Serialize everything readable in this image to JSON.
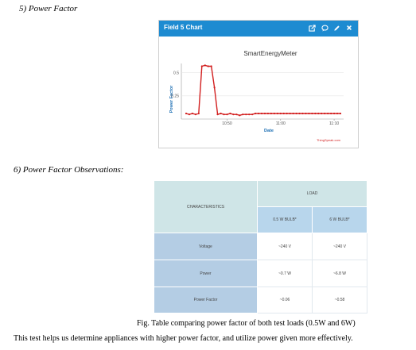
{
  "headings": {
    "power_factor": "5)  Power Factor",
    "observations": "6)  Power Factor Observations:"
  },
  "widget": {
    "title": "Field 5 Chart",
    "icons": [
      "external-link-icon",
      "comment-icon",
      "pencil-icon",
      "close-icon"
    ],
    "header_color": "#1d8bd1"
  },
  "chart_data": {
    "type": "line",
    "title": "SmartEnergyMeter",
    "xlabel": "Date",
    "ylabel": "Power Factor",
    "credit": "ThingSpeak.com",
    "y_ticks": [
      "0.5",
      "0.25"
    ],
    "x_ticks": [
      "10:50",
      "11:00",
      "11:10"
    ],
    "ylim": [
      0,
      0.6
    ],
    "color": "#d21f1f",
    "points": [
      [
        0,
        0.06
      ],
      [
        1,
        0.05
      ],
      [
        2,
        0.06
      ],
      [
        3,
        0.05
      ],
      [
        4,
        0.06
      ],
      [
        5,
        0.57
      ],
      [
        6,
        0.58
      ],
      [
        7,
        0.57
      ],
      [
        8,
        0.57
      ],
      [
        9,
        0.34
      ],
      [
        10,
        0.05
      ],
      [
        11,
        0.06
      ],
      [
        12,
        0.05
      ],
      [
        13,
        0.05
      ],
      [
        14,
        0.06
      ],
      [
        15,
        0.05
      ],
      [
        16,
        0.05
      ],
      [
        17,
        0.04
      ],
      [
        18,
        0.05
      ],
      [
        19,
        0.05
      ],
      [
        20,
        0.05
      ],
      [
        21,
        0.05
      ],
      [
        22,
        0.06
      ],
      [
        23,
        0.06
      ],
      [
        24,
        0.06
      ],
      [
        25,
        0.06
      ],
      [
        26,
        0.06
      ],
      [
        27,
        0.06
      ],
      [
        28,
        0.06
      ],
      [
        29,
        0.06
      ],
      [
        30,
        0.06
      ],
      [
        31,
        0.06
      ],
      [
        32,
        0.06
      ],
      [
        33,
        0.06
      ],
      [
        34,
        0.06
      ],
      [
        35,
        0.06
      ],
      [
        36,
        0.06
      ],
      [
        37,
        0.06
      ],
      [
        38,
        0.06
      ],
      [
        39,
        0.06
      ],
      [
        40,
        0.06
      ],
      [
        41,
        0.06
      ],
      [
        42,
        0.06
      ],
      [
        43,
        0.06
      ],
      [
        44,
        0.06
      ],
      [
        45,
        0.06
      ],
      [
        46,
        0.06
      ],
      [
        47,
        0.06
      ],
      [
        48,
        0.06
      ],
      [
        49,
        0.06
      ]
    ]
  },
  "table": {
    "characteristics": "CHARACTERISTICS",
    "load": "LOAD",
    "columns": [
      "0.5 W BULB*",
      "6 W BULB*"
    ],
    "rows": [
      {
        "label": "Voltage",
        "values": [
          "~240 V",
          "~240 V"
        ]
      },
      {
        "label": "Power",
        "values": [
          "~0.7 W",
          "~6.8 W"
        ]
      },
      {
        "label": "Power Factor",
        "values": [
          "~0.06",
          "~0.58"
        ]
      }
    ]
  },
  "caption": "Fig. Table comparing power factor of both test loads (0.5W and 6W)",
  "paragraph": "This test helps us determine appliances with higher power factor, and utilize power given more effectively."
}
